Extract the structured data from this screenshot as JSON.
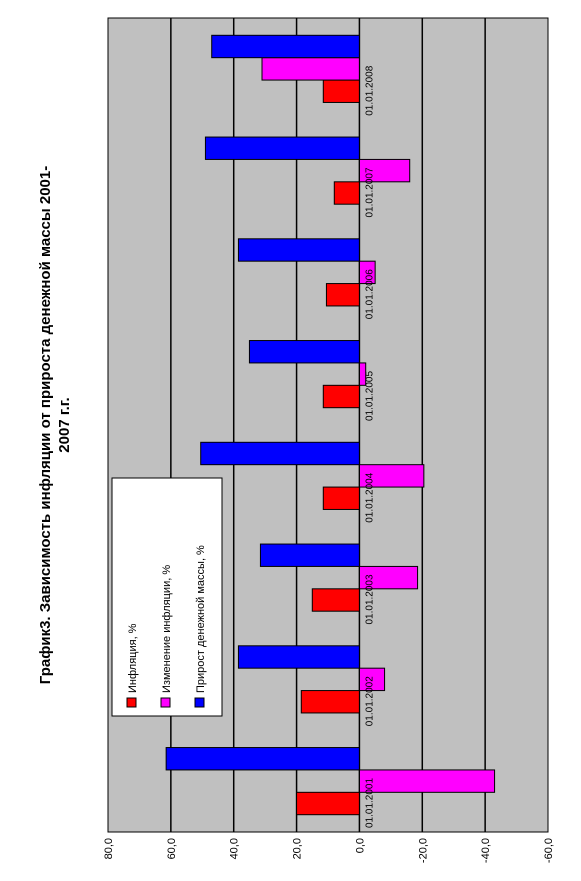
{
  "chart_data": {
    "type": "bar",
    "orientation": "rotated",
    "title_line1": "График3. Зависимость инфляции от прироста денежной массы 2001-",
    "title_line2": "2007 г.г.",
    "categories": [
      "01.01.2001",
      "01.01.2002",
      "01.01.2003",
      "01.01.2004",
      "01.01.2005",
      "01.01.2006",
      "01.01.2007",
      "01.01.2008"
    ],
    "series": [
      {
        "name": "Инфляция, %",
        "color": "#ff0000",
        "values": [
          20,
          18.5,
          15,
          11.5,
          11.5,
          10.5,
          8,
          11.5
        ]
      },
      {
        "name": "Изменение инфляции, %",
        "color": "#ff00ff",
        "values": [
          -43,
          -8,
          -18.5,
          -20.5,
          -2,
          -5,
          -16,
          31
        ]
      },
      {
        "name": "Прирост денежной массы, %",
        "color": "#0000ff",
        "values": [
          61.5,
          38.5,
          31.5,
          50.5,
          35,
          38.5,
          49,
          47
        ]
      }
    ],
    "ylim": [
      -60,
      80
    ],
    "ticks": [
      "80,0",
      "60,0",
      "40,0",
      "20,0",
      "0,0",
      "-20,0",
      "-40,0",
      "-60,0"
    ],
    "tick_values": [
      80,
      60,
      40,
      20,
      0,
      -20,
      -40,
      -60
    ],
    "grid": true,
    "legend_position": "top-left"
  }
}
